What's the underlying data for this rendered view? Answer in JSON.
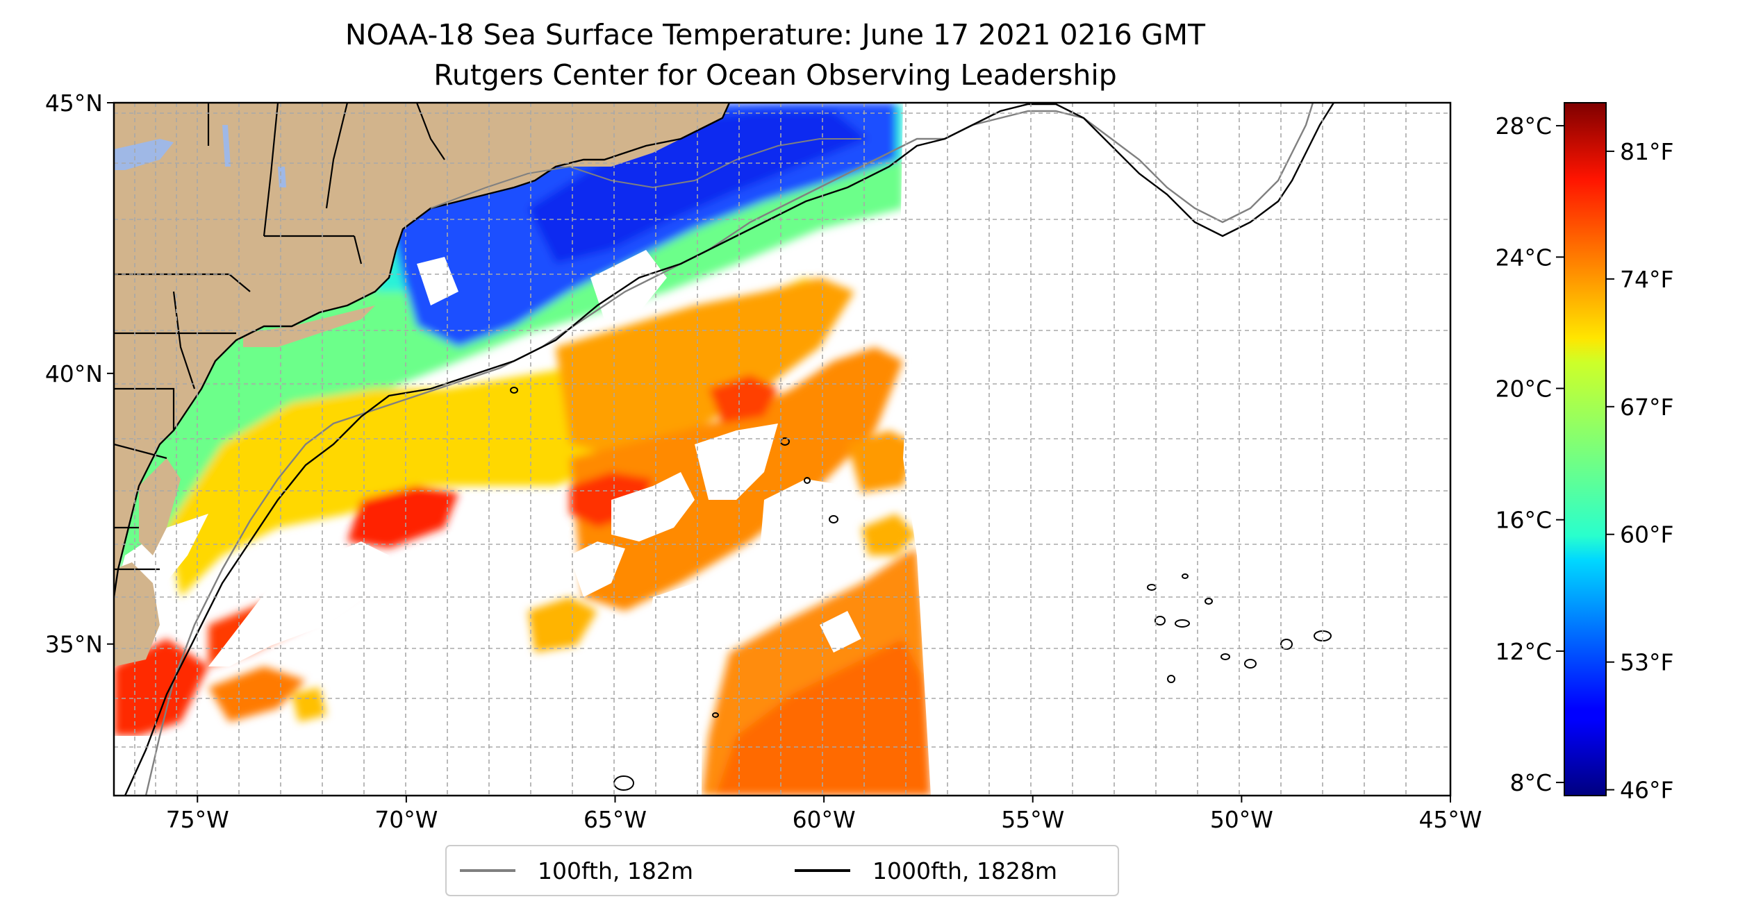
{
  "title": "NOAA-18 Sea Surface Temperature: June 17 2021 0216 GMT",
  "subtitle": "Rutgers Center for Ocean Observing Leadership",
  "map": {
    "lon_range": [
      -77,
      -45
    ],
    "lat_range": [
      32.2,
      45
    ],
    "lon_ticks": [
      {
        "value": -75,
        "label": "75°W"
      },
      {
        "value": -70,
        "label": "70°W"
      },
      {
        "value": -65,
        "label": "65°W"
      },
      {
        "value": -60,
        "label": "60°W"
      },
      {
        "value": -55,
        "label": "55°W"
      },
      {
        "value": -50,
        "label": "50°W"
      },
      {
        "value": -45,
        "label": "45°W"
      }
    ],
    "lat_ticks": [
      {
        "value": 35,
        "label": "35°N"
      },
      {
        "value": 40,
        "label": "40°N"
      },
      {
        "value": 45,
        "label": "45°N"
      }
    ],
    "grid": true,
    "land_color": "#d2b48c",
    "lake_color": "#9fb8e6"
  },
  "legend": {
    "placement": "bottom-center",
    "entries": [
      {
        "label": "100fth, 182m",
        "color": "#808080"
      },
      {
        "label": "1000fth, 1828m",
        "color": "#000000"
      }
    ]
  },
  "colorbar": {
    "colormap": "jet",
    "celsius_range": [
      7.6,
      28.7
    ],
    "celsius_ticks": [
      {
        "value": 8,
        "label": "8°C"
      },
      {
        "value": 12,
        "label": "12°C"
      },
      {
        "value": 16,
        "label": "16°C"
      },
      {
        "value": 20,
        "label": "20°C"
      },
      {
        "value": 24,
        "label": "24°C"
      },
      {
        "value": 28,
        "label": "28°C"
      }
    ],
    "fahrenheit_ticks": [
      {
        "value": 46,
        "label": "46°F"
      },
      {
        "value": 53,
        "label": "53°F"
      },
      {
        "value": 60,
        "label": "60°F"
      },
      {
        "value": 67,
        "label": "67°F"
      },
      {
        "value": 74,
        "label": "74°F"
      },
      {
        "value": 81,
        "label": "81°F"
      }
    ]
  }
}
